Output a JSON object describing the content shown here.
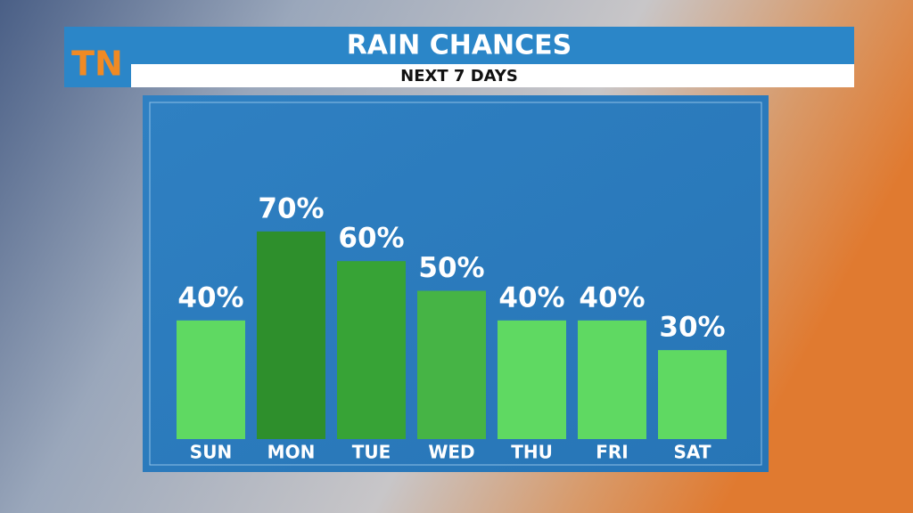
{
  "logo": "TN",
  "chart_data": {
    "type": "bar",
    "title": "RAIN CHANCES",
    "subtitle": "NEXT 7 DAYS",
    "categories": [
      "SUN",
      "MON",
      "TUE",
      "WED",
      "THU",
      "FRI",
      "SAT"
    ],
    "values": [
      40,
      70,
      60,
      50,
      40,
      40,
      30
    ],
    "value_labels": [
      "40%",
      "70%",
      "60%",
      "50%",
      "40%",
      "40%",
      "30%"
    ],
    "colors": [
      "#5fd962",
      "#2e8f2c",
      "#37a336",
      "#46b445",
      "#5fd962",
      "#5fd962",
      "#5fd962"
    ],
    "ylim": [
      0,
      100
    ]
  }
}
